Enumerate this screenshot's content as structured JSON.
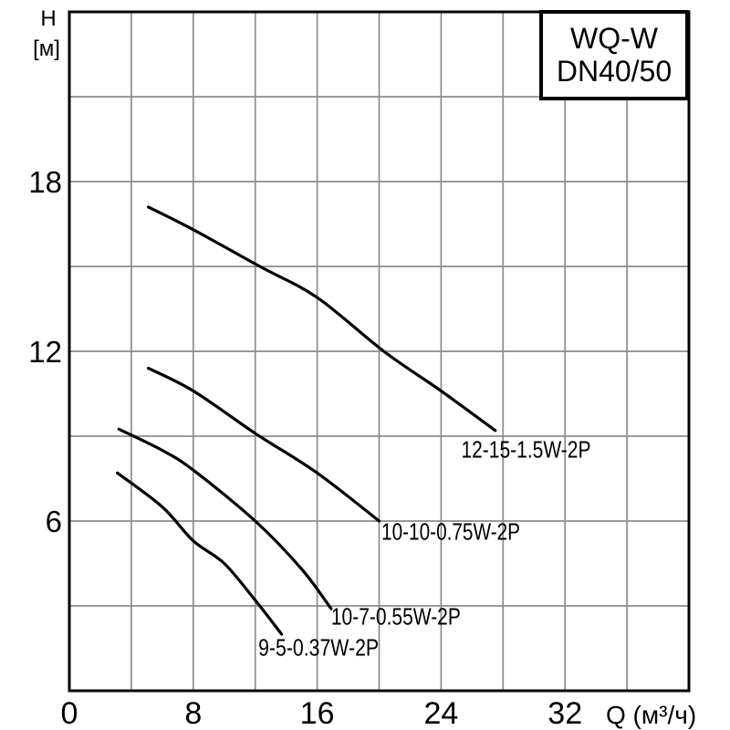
{
  "window": {
    "background": "#ffffff"
  },
  "title_box": {
    "line1": "WQ-W",
    "line2": "DN40/50"
  },
  "axes": {
    "y_label_line1": "H",
    "y_label_line2": "[м]",
    "x_unit_label": "Q (м³/ч)"
  },
  "chart_data": {
    "type": "line",
    "title": "WQ-W DN40/50",
    "xlabel": "Q (м³/ч)",
    "ylabel": "H [м]",
    "xlim": [
      0,
      40
    ],
    "ylim": [
      0,
      24
    ],
    "x_grid_step": 4,
    "y_grid_step": 3,
    "x_ticks": [
      0,
      8,
      16,
      24,
      32
    ],
    "y_ticks": [
      6,
      12,
      18
    ],
    "grid": true,
    "legend_position": "inline-curve-labels",
    "colors": {
      "curve": "#000000",
      "grid": "#8c8c8c",
      "frame": "#000000",
      "text": "#000000",
      "title_box_bg": "#ffffff"
    },
    "series": [
      {
        "name": "12-15-1.5W-2P",
        "points": [
          [
            5.1,
            17.1
          ],
          [
            8,
            16.3
          ],
          [
            12.3,
            15.0
          ],
          [
            16,
            13.9
          ],
          [
            20.3,
            12.0
          ],
          [
            24,
            10.6
          ],
          [
            27.5,
            9.2
          ]
        ],
        "label_anchor": [
          25.3,
          8.85
        ],
        "label_length": 142
      },
      {
        "name": "10-10-0.75W-2P",
        "points": [
          [
            5.1,
            11.4
          ],
          [
            8,
            10.6
          ],
          [
            12,
            9.1
          ],
          [
            16,
            7.7
          ],
          [
            20,
            6.0
          ]
        ],
        "label_anchor": [
          20.15,
          5.95
        ],
        "label_length": 152
      },
      {
        "name": "10-7-0.55W-2P",
        "points": [
          [
            3.2,
            9.25
          ],
          [
            6,
            8.5
          ],
          [
            8,
            7.8
          ],
          [
            12,
            6.0
          ],
          [
            15,
            4.3
          ],
          [
            16.9,
            2.9
          ]
        ],
        "label_anchor": [
          16.9,
          2.95
        ],
        "label_length": 142
      },
      {
        "name": "9-5-0.37W-2P",
        "points": [
          [
            3.1,
            7.7
          ],
          [
            6,
            6.5
          ],
          [
            8,
            5.3
          ],
          [
            10,
            4.5
          ],
          [
            12,
            3.2
          ],
          [
            13.7,
            2.0
          ]
        ],
        "label_anchor": [
          12.2,
          1.85
        ],
        "label_length": 132
      }
    ]
  }
}
